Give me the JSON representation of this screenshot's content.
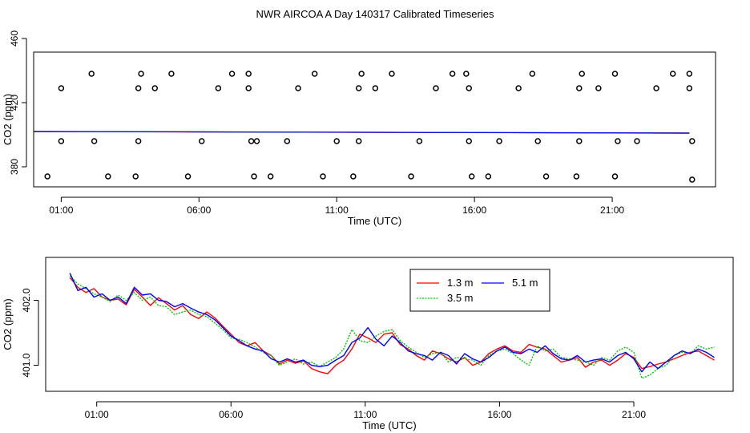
{
  "title": "NWR AIRCOA A  Day 140317  Calibrated Timeseries",
  "colors": {
    "red": "#ff0000",
    "green": "#00c800",
    "blue": "#0000ff",
    "axis": "#000000"
  },
  "chart_data": [
    {
      "type": "scatter",
      "panel": "top",
      "xlabel": "Time (UTC)",
      "ylabel": "CO2 (ppm)",
      "xlim": [
        0.0,
        24.75
      ],
      "ylim": [
        367.5,
        451.5
      ],
      "xticks": [
        1,
        6,
        11,
        16,
        21
      ],
      "xtick_labels": [
        "01:00",
        "06:00",
        "11:00",
        "16:00",
        "21:00"
      ],
      "yticks": [
        380,
        420,
        460
      ],
      "ytick_labels": [
        "380",
        "420",
        "460"
      ],
      "flat_line": {
        "x": [
          0.0,
          23.8
        ],
        "y": [
          402.0,
          401.0
        ]
      },
      "open_points": {
        "x": [
          2.1,
          3.9,
          5.0,
          7.2,
          7.8,
          10.2,
          11.9,
          13.0,
          15.2,
          15.7,
          18.1,
          19.9,
          21.1,
          23.2,
          23.8,
          1.0,
          3.8,
          4.4,
          6.7,
          7.8,
          9.6,
          11.8,
          12.4,
          14.6,
          15.8,
          17.6,
          19.8,
          20.5,
          22.6,
          23.8,
          1.0,
          2.2,
          3.8,
          6.1,
          7.9,
          8.1,
          9.2,
          11.0,
          11.8,
          14.0,
          15.8,
          16.9,
          18.3,
          19.8,
          21.2,
          21.9,
          23.9,
          0.5,
          2.7,
          3.7,
          5.6,
          8.0,
          8.6,
          10.5,
          11.6,
          13.7,
          15.9,
          16.5,
          18.6,
          19.7,
          21.1,
          23.9
        ],
        "y": [
          438,
          438,
          438,
          438,
          438,
          438,
          438,
          438,
          438,
          438,
          438,
          438,
          438,
          438,
          438,
          429,
          429,
          429,
          429,
          429,
          429,
          429,
          429,
          429,
          429,
          429,
          429,
          429,
          429,
          429,
          396,
          396,
          396,
          396,
          396,
          396,
          396,
          396,
          396,
          396,
          396,
          396,
          396,
          396,
          396,
          396,
          396,
          374,
          374,
          374,
          374,
          374,
          374,
          374,
          374,
          374,
          374,
          374,
          374,
          374,
          374,
          372
        ]
      }
    },
    {
      "type": "line",
      "panel": "bottom",
      "xlabel": "Time (UTC)",
      "ylabel": "CO2 (ppm)",
      "xlim": [
        -0.9,
        24.7
      ],
      "ylim": [
        400.6,
        402.66
      ],
      "xticks": [
        1,
        6,
        11,
        16,
        21
      ],
      "xtick_labels": [
        "01:00",
        "06:00",
        "11:00",
        "16:00",
        "21:00"
      ],
      "yticks": [
        401.0,
        402.0
      ],
      "ytick_labels": [
        "401.0",
        "402.0"
      ],
      "legend": {
        "position": "top-center",
        "entries": [
          {
            "label": "1.3 m",
            "color": "red"
          },
          {
            "label": "3.5 m",
            "color": "green"
          },
          {
            "label": "5.1 m",
            "color": "blue"
          }
        ]
      },
      "series": [
        {
          "name": "1.3 m",
          "color": "red",
          "x": [
            0.0,
            0.3,
            0.6,
            0.9,
            1.2,
            1.5,
            1.8,
            2.1,
            2.4,
            2.7,
            3.0,
            3.3,
            3.6,
            3.9,
            4.2,
            4.5,
            4.8,
            5.1,
            5.4,
            5.7,
            6.0,
            6.3,
            6.6,
            6.9,
            7.2,
            7.5,
            7.8,
            8.1,
            8.4,
            8.7,
            9.0,
            9.3,
            9.6,
            9.9,
            10.2,
            10.5,
            10.8,
            11.1,
            11.4,
            11.7,
            12.0,
            12.3,
            12.6,
            12.9,
            13.2,
            13.5,
            13.8,
            14.1,
            14.4,
            14.7,
            15.0,
            15.3,
            15.6,
            15.9,
            16.2,
            16.5,
            16.8,
            17.1,
            17.4,
            17.7,
            18.0,
            18.3,
            18.6,
            18.9,
            19.2,
            19.5,
            19.8,
            20.1,
            20.4,
            20.7,
            21.0,
            21.3,
            21.6,
            21.9,
            22.2,
            22.5,
            22.8,
            23.1,
            23.4,
            23.7,
            24.0
          ],
          "y": [
            402.35,
            402.2,
            402.12,
            402.18,
            402.05,
            402.0,
            402.02,
            401.93,
            402.17,
            402.05,
            401.92,
            402.04,
            401.95,
            401.85,
            401.92,
            401.78,
            401.72,
            401.82,
            401.73,
            401.6,
            401.48,
            401.35,
            401.3,
            401.35,
            401.22,
            401.15,
            401.02,
            401.08,
            401.03,
            401.07,
            400.95,
            400.9,
            400.87,
            401.0,
            401.08,
            401.25,
            401.48,
            401.42,
            401.35,
            401.48,
            401.5,
            401.32,
            401.25,
            401.15,
            401.08,
            401.22,
            401.18,
            401.1,
            401.05,
            401.12,
            401.0,
            401.05,
            401.18,
            401.25,
            401.3,
            401.22,
            401.2,
            401.32,
            401.28,
            401.25,
            401.15,
            401.05,
            401.08,
            401.12,
            400.97,
            401.05,
            401.08,
            401.0,
            401.08,
            401.18,
            401.12,
            400.95,
            400.98,
            401.02,
            401.05,
            401.1,
            401.15,
            401.2,
            401.22,
            401.15,
            401.08
          ]
        },
        {
          "name": "3.5 m",
          "color": "green",
          "x": [
            0.0,
            0.3,
            0.6,
            0.9,
            1.2,
            1.5,
            1.8,
            2.1,
            2.4,
            2.7,
            3.0,
            3.3,
            3.6,
            3.9,
            4.2,
            4.5,
            4.8,
            5.1,
            5.4,
            5.7,
            6.0,
            6.3,
            6.6,
            6.9,
            7.2,
            7.5,
            7.8,
            8.1,
            8.4,
            8.7,
            9.0,
            9.3,
            9.6,
            9.9,
            10.2,
            10.5,
            10.8,
            11.1,
            11.4,
            11.7,
            12.0,
            12.3,
            12.6,
            12.9,
            13.2,
            13.5,
            13.8,
            14.1,
            14.4,
            14.7,
            15.0,
            15.3,
            15.6,
            15.9,
            16.2,
            16.5,
            16.8,
            17.1,
            17.4,
            17.7,
            18.0,
            18.3,
            18.6,
            18.9,
            19.2,
            19.5,
            19.8,
            20.1,
            20.4,
            20.7,
            21.0,
            21.3,
            21.6,
            21.9,
            22.2,
            22.5,
            22.8,
            23.1,
            23.4,
            23.7,
            24.0
          ],
          "y": [
            402.38,
            402.25,
            402.18,
            402.1,
            402.05,
            401.98,
            402.08,
            402.0,
            402.12,
            402.0,
            402.05,
            401.92,
            401.9,
            401.78,
            401.82,
            401.85,
            401.78,
            401.75,
            401.65,
            401.55,
            401.42,
            401.4,
            401.35,
            401.28,
            401.2,
            401.15,
            401.0,
            401.05,
            401.1,
            401.02,
            401.05,
            400.98,
            401.05,
            401.12,
            401.25,
            401.55,
            401.38,
            401.35,
            401.45,
            401.52,
            401.55,
            401.38,
            401.28,
            401.2,
            401.12,
            401.18,
            401.2,
            401.05,
            401.12,
            401.1,
            401.08,
            401.0,
            401.15,
            401.22,
            401.25,
            401.18,
            401.08,
            401.0,
            401.3,
            401.22,
            401.25,
            401.12,
            401.1,
            401.08,
            401.05,
            401.0,
            401.12,
            401.08,
            401.22,
            401.28,
            401.2,
            400.8,
            400.85,
            400.95,
            401.0,
            401.15,
            401.2,
            401.18,
            401.3,
            401.25,
            401.28
          ]
        },
        {
          "name": "5.1 m",
          "color": "blue",
          "x": [
            0.0,
            0.3,
            0.6,
            0.9,
            1.2,
            1.5,
            1.8,
            2.1,
            2.4,
            2.7,
            3.0,
            3.3,
            3.6,
            3.9,
            4.2,
            4.5,
            4.8,
            5.1,
            5.4,
            5.7,
            6.0,
            6.3,
            6.6,
            6.9,
            7.2,
            7.5,
            7.8,
            8.1,
            8.4,
            8.7,
            9.0,
            9.3,
            9.6,
            9.9,
            10.2,
            10.5,
            10.8,
            11.1,
            11.4,
            11.7,
            12.0,
            12.3,
            12.6,
            12.9,
            13.2,
            13.5,
            13.8,
            14.1,
            14.4,
            14.7,
            15.0,
            15.3,
            15.6,
            15.9,
            16.2,
            16.5,
            16.8,
            17.1,
            17.4,
            17.7,
            18.0,
            18.3,
            18.6,
            18.9,
            19.2,
            19.5,
            19.8,
            20.1,
            20.4,
            20.7,
            21.0,
            21.3,
            21.6,
            21.9,
            22.2,
            22.5,
            22.8,
            23.1,
            23.4,
            23.7,
            24.0
          ],
          "y": [
            402.42,
            402.15,
            402.2,
            402.05,
            402.1,
            402.0,
            402.05,
            401.95,
            402.2,
            402.08,
            402.1,
            402.0,
            401.98,
            401.9,
            401.95,
            401.88,
            401.82,
            401.78,
            401.7,
            401.58,
            401.45,
            401.38,
            401.3,
            401.25,
            401.22,
            401.1,
            401.05,
            401.1,
            401.05,
            401.08,
            401.0,
            400.98,
            401.0,
            401.08,
            401.15,
            401.35,
            401.42,
            401.58,
            401.4,
            401.3,
            401.45,
            401.35,
            401.22,
            401.18,
            401.15,
            401.08,
            401.2,
            401.15,
            401.02,
            401.18,
            401.1,
            401.05,
            401.12,
            401.22,
            401.28,
            401.2,
            401.18,
            401.25,
            401.2,
            401.3,
            401.18,
            401.1,
            401.08,
            401.15,
            401.05,
            401.08,
            401.1,
            401.05,
            401.15,
            401.2,
            401.1,
            400.9,
            401.05,
            400.95,
            401.05,
            401.15,
            401.22,
            401.18,
            401.25,
            401.2,
            401.12
          ]
        }
      ]
    }
  ]
}
